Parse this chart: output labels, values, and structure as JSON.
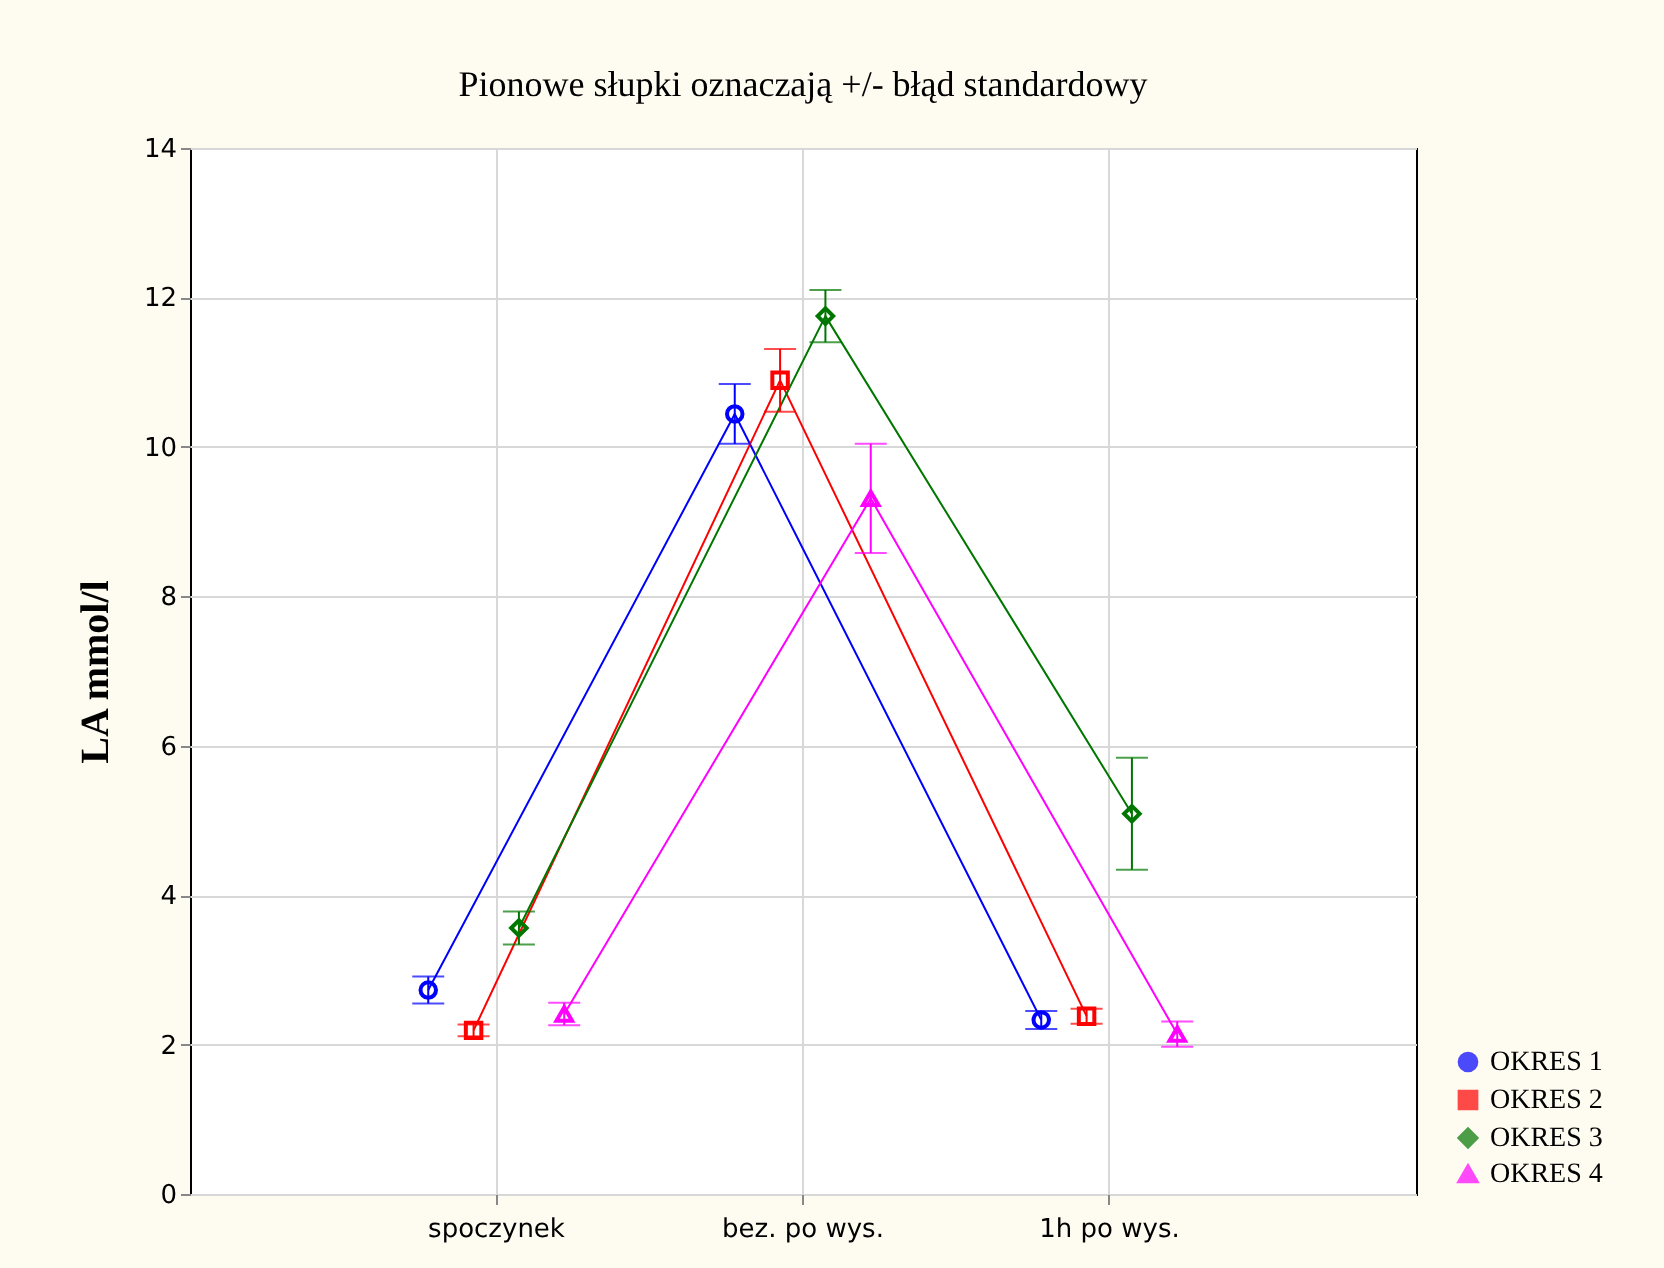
{
  "chart_data": {
    "type": "line",
    "title": "Pionowe słupki oznaczają +/- błąd standardowy",
    "ylabel": "LA  mmol/l",
    "categories": [
      "spoczynek",
      "bez. po wys.",
      "1h po wys."
    ],
    "ylim": [
      0,
      14
    ],
    "yticks": [
      0,
      2,
      4,
      6,
      8,
      10,
      12,
      14
    ],
    "grid": true,
    "legend": "bottom right",
    "line_style": "solid",
    "series": [
      {
        "name": "OKRES 1",
        "color": "#0000ff",
        "marker": "circle",
        "values": [
          2.73,
          10.44,
          2.33
        ],
        "errors": [
          0.18,
          0.4,
          0.12
        ]
      },
      {
        "name": "OKRES 2",
        "color": "#ff0000",
        "marker": "square",
        "values": [
          2.19,
          10.89,
          2.38
        ],
        "errors": [
          0.08,
          0.42,
          0.1
        ]
      },
      {
        "name": "OKRES 3",
        "color": "#007700",
        "marker": "diamond",
        "values": [
          3.56,
          11.75,
          5.09
        ],
        "errors": [
          0.22,
          0.35,
          0.75
        ]
      },
      {
        "name": "OKRES 4",
        "color": "#ff00ff",
        "marker": "triangle",
        "values": [
          2.41,
          9.31,
          2.14
        ],
        "errors": [
          0.15,
          0.73,
          0.17
        ]
      }
    ]
  }
}
